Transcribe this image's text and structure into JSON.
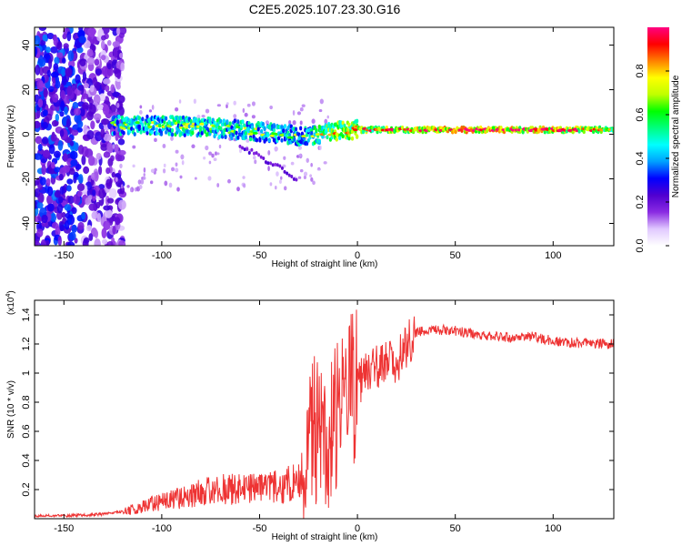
{
  "figure": {
    "title": "C2E5.2025.107.23.30.G16"
  },
  "chart_data": [
    {
      "type": "heatmap",
      "xlabel": "Height of straight line (km)",
      "ylabel": "Frequency (Hz)",
      "xlim": [
        -165,
        131
      ],
      "ylim": [
        -50,
        48
      ],
      "xticks": [
        -150,
        -100,
        -50,
        0,
        50,
        100
      ],
      "yticks": [
        -40,
        -20,
        0,
        20,
        40
      ],
      "colorbar": {
        "label": "Normalized spectral amplitude",
        "range": [
          0,
          1
        ],
        "ticks": [
          0.0,
          0.2,
          0.4,
          0.6,
          0.8
        ],
        "colormap": [
          "#ffffff",
          "#e0c8ff",
          "#8a2be2",
          "#5000d0",
          "#0000ff",
          "#00a0ff",
          "#00ffff",
          "#00ff80",
          "#00ff00",
          "#c0ff00",
          "#ffff00",
          "#ff8000",
          "#ff0000",
          "#ff0080"
        ]
      },
      "features": [
        {
          "region": "noise",
          "x_range": [
            -165,
            -120
          ],
          "y_range": [
            -50,
            48
          ],
          "amplitude": 0.1
        },
        {
          "region": "signal",
          "x": [
            -125,
            -100,
            -75,
            -50,
            -25,
            -15,
            0,
            50,
            100,
            131
          ],
          "y": [
            4,
            4,
            3,
            1,
            -1,
            1,
            2,
            2,
            2,
            2
          ],
          "amplitude": [
            0.5,
            0.55,
            0.55,
            0.5,
            0.5,
            0.7,
            0.7,
            0.85,
            0.8,
            0.7
          ]
        },
        {
          "region": "branch",
          "x": [
            -60,
            -50,
            -40,
            -30
          ],
          "y": [
            -5,
            -10,
            -15,
            -21
          ],
          "amplitude": 0.15
        }
      ]
    },
    {
      "type": "line",
      "xlabel": "Height of straight line (km)",
      "ylabel": "SNR (10 * v/v)",
      "multiplier_label": "(x10",
      "multiplier_exp": "4",
      "multiplier_close": ")",
      "xlim": [
        -165,
        131
      ],
      "ylim": [
        0,
        1.5
      ],
      "xticks": [
        -150,
        -100,
        -50,
        0,
        50,
        100
      ],
      "yticks": [
        0.2,
        0.4,
        0.6,
        0.8,
        1.0,
        1.2,
        1.4
      ],
      "series_color": "#ee3333",
      "series": [
        {
          "x": [
            -165,
            -150,
            -130,
            -120,
            -110,
            -100,
            -90,
            -80,
            -70,
            -60,
            -50,
            -40,
            -30,
            -25,
            -20,
            -15,
            -10,
            -5,
            0,
            5,
            10,
            15,
            20,
            25,
            30,
            40,
            50,
            60,
            70,
            80,
            90,
            100,
            110,
            120,
            131
          ],
          "y": [
            0.02,
            0.02,
            0.03,
            0.05,
            0.08,
            0.12,
            0.15,
            0.18,
            0.2,
            0.2,
            0.2,
            0.22,
            0.25,
            0.6,
            0.6,
            0.6,
            0.75,
            0.85,
            0.95,
            1.0,
            1.02,
            1.05,
            1.1,
            1.2,
            1.28,
            1.3,
            1.29,
            1.27,
            1.25,
            1.24,
            1.25,
            1.22,
            1.21,
            1.2,
            1.2
          ]
        }
      ]
    }
  ]
}
